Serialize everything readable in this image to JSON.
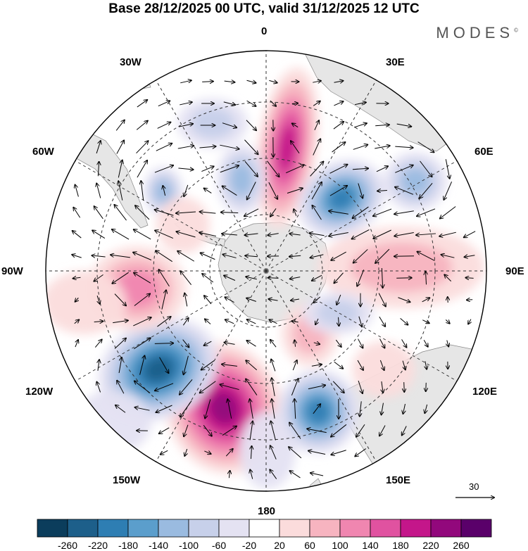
{
  "title": "Base 28/12/2025 00 UTC, valid 31/12/2025 12 UTC",
  "brand": "MODES",
  "brand_mark": "©",
  "map": {
    "projection": "south-polar-stereographic",
    "longitude_labels": [
      "0",
      "30E",
      "60E",
      "90E",
      "120E",
      "150E",
      "180",
      "150W",
      "120W",
      "90W",
      "60W",
      "30W"
    ],
    "reference_vector_label": "30",
    "land_color": "#e6e6e6",
    "anomaly_centers": [
      {
        "sign": "positive",
        "value": 220,
        "location": "near 180"
      },
      {
        "sign": "negative",
        "value": -200,
        "location": "near 130W"
      },
      {
        "sign": "positive",
        "value": 160,
        "location": "near 10E"
      },
      {
        "sign": "negative",
        "value": -160,
        "location": "near 45E"
      },
      {
        "sign": "negative",
        "value": -160,
        "location": "near 150E"
      },
      {
        "sign": "positive",
        "value": 100,
        "location": "near 90W"
      }
    ]
  },
  "legend": {
    "ticks": [
      "-260",
      "-220",
      "-180",
      "-140",
      "-100",
      "-60",
      "-20",
      "20",
      "60",
      "100",
      "140",
      "180",
      "220",
      "260"
    ],
    "colors": [
      "#0b3d5c",
      "#1d5f8a",
      "#2e7eb3",
      "#5b9ecc",
      "#9abbe0",
      "#c7d0ea",
      "#e4e2f2",
      "#ffffff",
      "#fbdcdc",
      "#f7b4c0",
      "#f086b0",
      "#e052a0",
      "#c4168a",
      "#92087c",
      "#5a006a"
    ]
  }
}
